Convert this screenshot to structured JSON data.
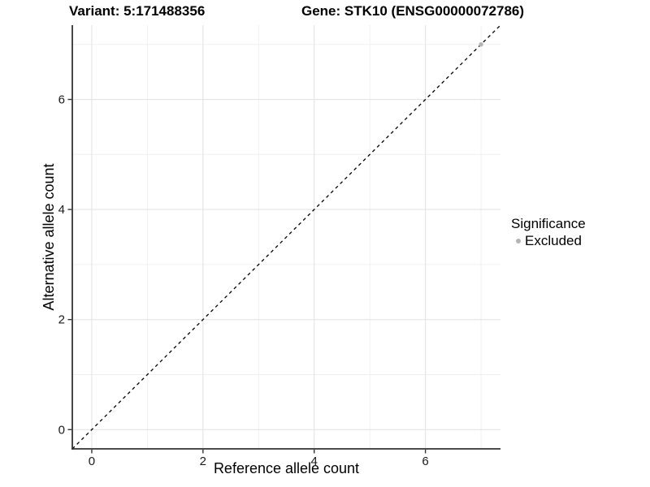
{
  "header": {
    "variant_title": "Variant: 5:171488356",
    "gene_title": "Gene: STK10 (ENSG00000072786)"
  },
  "axes": {
    "x_label": "Reference allele count",
    "y_label": "Alternative allele count"
  },
  "legend": {
    "title": "Significance",
    "items": [
      {
        "label": "Excluded",
        "color": "#b4b4b4"
      }
    ]
  },
  "chart_data": {
    "type": "scatter",
    "title": "Variant: 5:171488356    Gene: STK10 (ENSG00000072786)",
    "xlabel": "Reference allele count",
    "ylabel": "Alternative allele count",
    "xlim": [
      -0.35,
      7.35
    ],
    "ylim": [
      -0.35,
      7.35
    ],
    "xticks": [
      0,
      2,
      4,
      6
    ],
    "yticks": [
      0,
      2,
      4,
      6
    ],
    "minor_gridlines": [
      1,
      3,
      5,
      7
    ],
    "grid": "major+minor",
    "legend_position": "right",
    "legend_title": "Significance",
    "series": [
      {
        "name": "Excluded",
        "color": "#b4b4b4",
        "points": [
          [
            7,
            7
          ]
        ]
      }
    ],
    "identity_line": {
      "slope": 1,
      "intercept": 0,
      "style": "dashed",
      "color": "#000000"
    }
  },
  "style": {
    "background": "#ffffff",
    "axis_color": "#333333",
    "tick_label_color": "#1a1a1a",
    "grid_major_color": "#e4e4e4",
    "grid_minor_color": "#f0f0f0",
    "point_color": "#b4b4b4",
    "dashed_line_color": "#000000"
  }
}
